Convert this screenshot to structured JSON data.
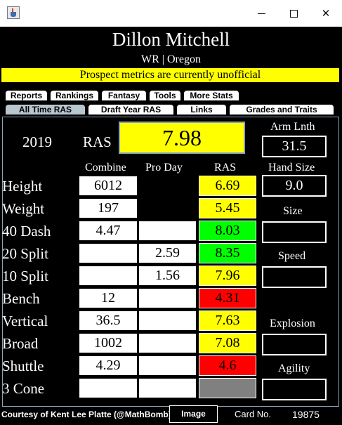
{
  "window": {
    "title": "",
    "icon": "java-cup-icon",
    "controls": [
      "minimize",
      "maximize",
      "close"
    ]
  },
  "player": {
    "name": "Dillon Mitchell",
    "meta": "WR | Oregon",
    "notice": "Prospect metrics are currently unofficial"
  },
  "tabs": {
    "row1": [
      "Reports",
      "Rankings",
      "Fantasy",
      "Tools",
      "More Stats"
    ],
    "row2": [
      "All Time RAS",
      "Draft Year RAS",
      "Links",
      "Grades and Traits"
    ],
    "selected": "All Time RAS"
  },
  "summary": {
    "year": "2019",
    "ras_label": "RAS",
    "ras_score": "7.98"
  },
  "columns": [
    "Combine",
    "Pro Day",
    "RAS"
  ],
  "metrics": [
    {
      "label": "Height",
      "combine": "6012",
      "proday": "",
      "ras": "6.69",
      "ras_color": "#ffff00"
    },
    {
      "label": "Weight",
      "combine": "197",
      "proday": "",
      "ras": "5.45",
      "ras_color": "#ffff00"
    },
    {
      "label": "40 Dash",
      "combine": "4.47",
      "proday": "",
      "ras": "8.03",
      "ras_color": "#00ff00"
    },
    {
      "label": "20 Split",
      "combine": "",
      "proday": "2.59",
      "ras": "8.35",
      "ras_color": "#00ff00"
    },
    {
      "label": "10 Split",
      "combine": "",
      "proday": "1.56",
      "ras": "7.96",
      "ras_color": "#ffff00"
    },
    {
      "label": "Bench",
      "combine": "12",
      "proday": "",
      "ras": "4.31",
      "ras_color": "#ff0000"
    },
    {
      "label": "Vertical",
      "combine": "36.5",
      "proday": "",
      "ras": "7.63",
      "ras_color": "#ffff00"
    },
    {
      "label": "Broad",
      "combine": "1002",
      "proday": "",
      "ras": "7.08",
      "ras_color": "#ffff00"
    },
    {
      "label": "Shuttle",
      "combine": "4.29",
      "proday": "",
      "ras": "4.6",
      "ras_color": "#ff0000"
    },
    {
      "label": "3 Cone",
      "combine": "",
      "proday": "",
      "ras": "",
      "ras_color": "#808080"
    }
  ],
  "side": {
    "arm_length_label": "Arm Lnth",
    "arm_length": "31.5",
    "hand_size_label": "Hand Size",
    "hand_size": "9.0",
    "size_label": "Size",
    "size_value": "",
    "speed_label": "Speed",
    "speed_value": "",
    "explosion_label": "Explosion",
    "explosion_value": "",
    "agility_label": "Agility",
    "agility_value": ""
  },
  "footer": {
    "credit": "Courtesy of Kent Lee Platte (@MathBomb)",
    "image_button": "Image",
    "card_label": "Card No.",
    "card_number": "19875"
  },
  "colors": {
    "background": "#000000",
    "notice": "#ffff00",
    "tab_selected": "#b8c6cf",
    "border_accent": "#8aa3b5"
  }
}
